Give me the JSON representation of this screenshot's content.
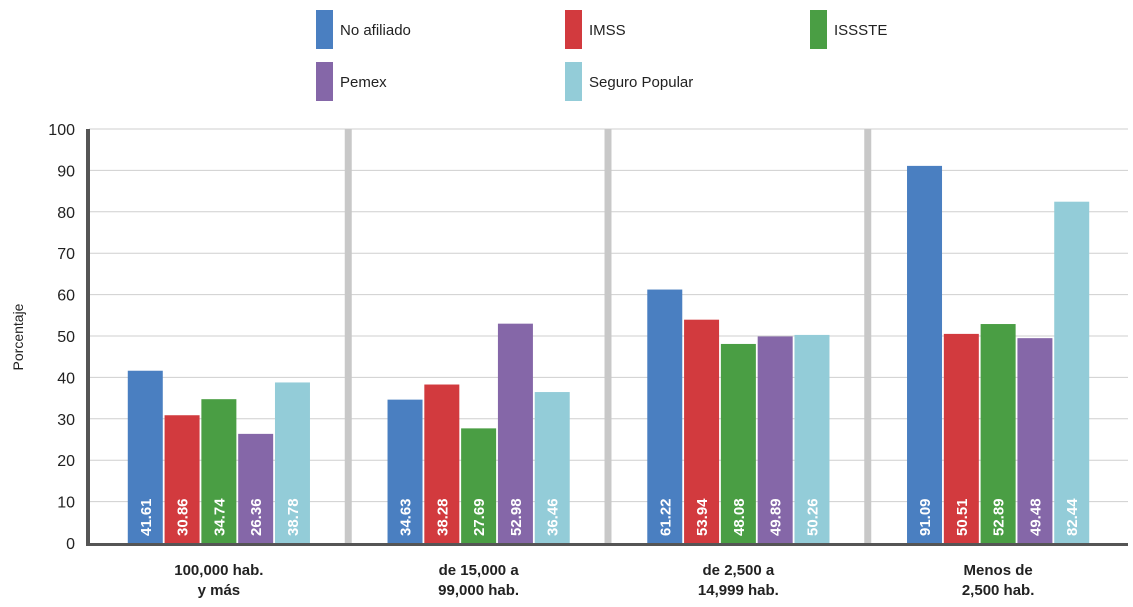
{
  "chart_data": {
    "type": "bar",
    "ylabel": "Porcentaje",
    "ylim": [
      0,
      100
    ],
    "yticks": [
      "0",
      "10",
      "20",
      "30",
      "40",
      "50",
      "60",
      "70",
      "80",
      "90",
      "100"
    ],
    "categories": [
      [
        "100,000 hab.",
        "y más"
      ],
      [
        "de 15,000 a",
        "99,000 hab."
      ],
      [
        "de 2,500 a",
        "14,999 hab."
      ],
      [
        "Menos de",
        "2,500 hab."
      ]
    ],
    "legend_position": "top",
    "series": [
      {
        "name": "No afiliado",
        "color": "#4a7fc1",
        "values": [
          41.61,
          34.63,
          61.22,
          91.09
        ],
        "labels": [
          "41.61",
          "34.63",
          "61.22",
          "91.09"
        ]
      },
      {
        "name": "IMSS",
        "color": "#d23a3e",
        "values": [
          30.86,
          38.28,
          53.94,
          50.51
        ],
        "labels": [
          "30.86",
          "38.28",
          "53.94",
          "50.51"
        ]
      },
      {
        "name": "ISSSTE",
        "color": "#4a9e44",
        "values": [
          34.74,
          27.69,
          48.08,
          52.89
        ],
        "labels": [
          "34.74",
          "27.69",
          "48.08",
          "52.89"
        ]
      },
      {
        "name": "Pemex",
        "color": "#8567a8",
        "values": [
          26.36,
          52.98,
          49.89,
          49.48
        ],
        "labels": [
          "26.36",
          "52.98",
          "49.89",
          "49.48"
        ]
      },
      {
        "name": "Seguro Popular",
        "color": "#93ccd8",
        "values": [
          38.78,
          36.46,
          50.26,
          82.44
        ],
        "labels": [
          "38.78",
          "36.46",
          "50.26",
          "82.44"
        ]
      }
    ],
    "grid": true
  }
}
